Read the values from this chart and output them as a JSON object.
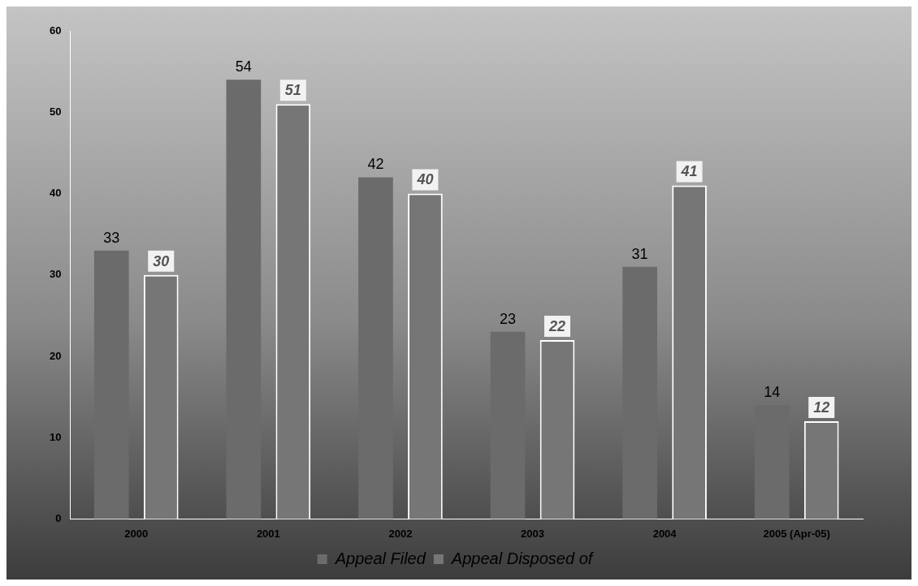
{
  "chart_data": {
    "type": "bar",
    "categories": [
      "2000",
      "2001",
      "2002",
      "2003",
      "2004",
      "2005 (Apr-05)"
    ],
    "series": [
      {
        "name": "Appeal Filed",
        "color": "#6b6b6b",
        "values": [
          33,
          54,
          42,
          23,
          31,
          14
        ]
      },
      {
        "name": "Appeal Disposed of",
        "color": "#767676",
        "values": [
          30,
          51,
          40,
          22,
          41,
          12
        ]
      }
    ],
    "ylim": [
      0,
      60
    ],
    "yticks": [
      0,
      10,
      20,
      30,
      40,
      50,
      60
    ],
    "grid": false,
    "legend": "bottom",
    "data_labels": true
  }
}
